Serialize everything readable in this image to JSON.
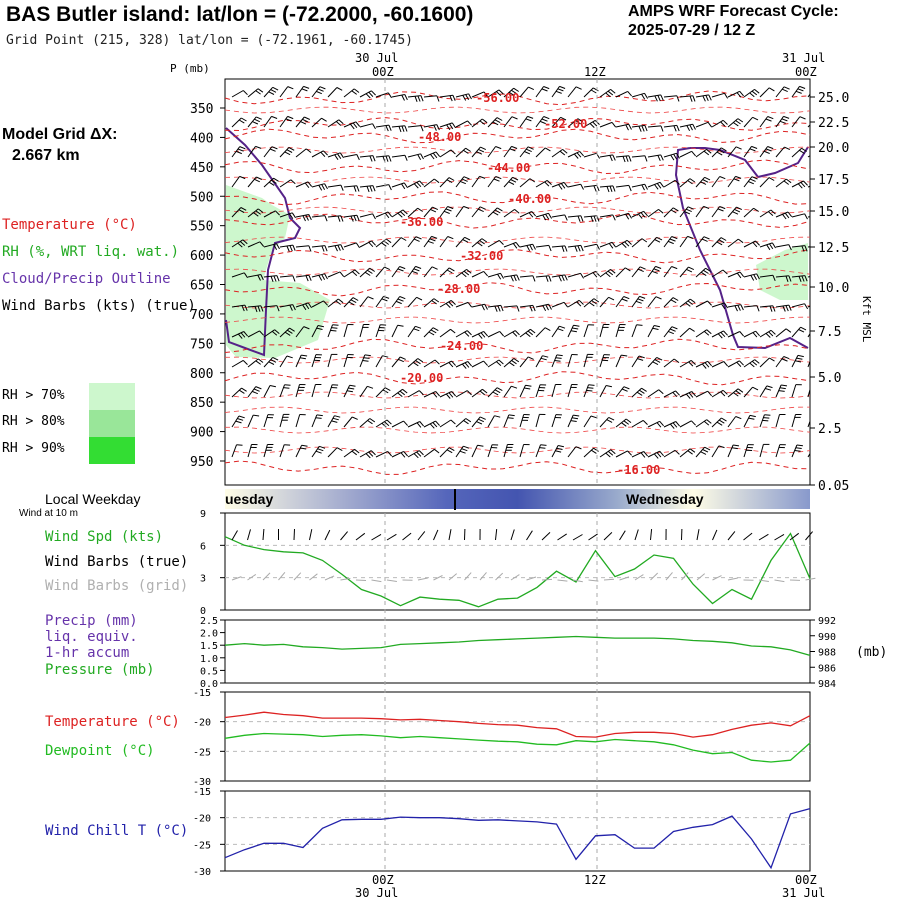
{
  "header": {
    "title": "BAS Butler island:  lat/lon = (-72.2000, -60.1600)",
    "subtitle": "Grid Point (215, 328) lat/lon = (-72.1961, -60.1745)",
    "cycle_line1": "AMPS WRF Forecast Cycle:",
    "cycle_line2": "2025-07-29 / 12  Z",
    "grid_label": "Model Grid ΔX:",
    "grid_value": "2.667 km"
  },
  "legend": {
    "temperature": "Temperature (°C)",
    "rh": "RH (%, WRT liq. wat.)",
    "cloud": "Cloud/Precip Outline",
    "wind": "Wind Barbs (kts) (true)",
    "rh_levels": [
      "RH > 70%",
      "RH > 80%",
      "RH > 90%"
    ],
    "rh_colors": [
      "#cdf7cd",
      "#99e699",
      "#33dd33"
    ]
  },
  "top_axis": {
    "date_label": "30 Jul",
    "date_label_right": "31 Jul",
    "ticks": [
      "00Z",
      "12Z",
      "00Z"
    ],
    "p_label": "P (mb)",
    "right_label": "Kft MSL"
  },
  "bottom_axis": {
    "ticks": [
      "00Z",
      "12Z",
      "00Z"
    ],
    "date_label": "30 Jul",
    "date_label_right": "31 Jul"
  },
  "weekday": {
    "title": "Local Weekday",
    "sub": "Wind at 10 m",
    "left_day": "uesday",
    "right_day": "Wednesday"
  },
  "panels": {
    "wind": {
      "labels": [
        "Wind Spd (kts)",
        "Wind Barbs (true)",
        "Wind Barbs (grid)"
      ],
      "label_colors": [
        "#22aa22",
        "#000000",
        "#b0b0b0"
      ],
      "yticks": [
        "9",
        "6",
        "3",
        "0"
      ]
    },
    "precip": {
      "labels": [
        "Precip (mm)",
        "liq. equiv.",
        "1-hr accum",
        "Pressure (mb)"
      ],
      "label_colors": [
        "#6633aa",
        "#6633aa",
        "#6633aa",
        "#22aa22"
      ],
      "yticks_left": [
        "2.5",
        "2.0",
        "1.5",
        "1.0",
        "0.5",
        "0.0"
      ],
      "yticks_right": [
        "992",
        "990",
        "988",
        "986",
        "984"
      ],
      "unit_right": "(mb)"
    },
    "temp": {
      "labels": [
        "Temperature (°C)",
        "Dewpoint (°C)"
      ],
      "label_colors": [
        "#dd2222",
        "#22bb22"
      ],
      "yticks": [
        "-15",
        "-20",
        "-25",
        "-30"
      ]
    },
    "chill": {
      "labels": [
        "Wind Chill T (°C)"
      ],
      "label_colors": [
        "#2222aa"
      ],
      "yticks": [
        "-15",
        "-20",
        "-25",
        "-30"
      ]
    }
  },
  "chart_data": [
    {
      "type": "heatmap",
      "title": "",
      "ylabel": "P (mb)",
      "y2label": "Kft MSL",
      "pressure_ticks": [
        350,
        400,
        450,
        500,
        550,
        600,
        650,
        700,
        750,
        800,
        850,
        900,
        950
      ],
      "height_ticks_kft": [
        "25.0",
        "22.5",
        "20.0",
        "17.5",
        "15.0",
        "12.5",
        "10.0",
        "7.5",
        "5.0",
        "2.5",
        "0.05"
      ],
      "temperature_contour_labels": [
        "-56.00",
        "-52.00",
        "-48.00",
        "-44.00",
        "-40.00",
        "-36.00",
        "-32.00",
        "-28.00",
        "-24.00",
        "-20.00",
        "-16.00"
      ],
      "colors": {
        "temperature": "#dd2222",
        "cloud": "#552288",
        "rh70": "#cdf7cd"
      }
    },
    {
      "type": "line",
      "title": "Wind Spd (kts)",
      "x_hours": [
        0,
        2,
        4,
        6,
        8,
        10,
        12,
        14,
        16,
        18,
        20,
        22,
        24,
        26,
        28,
        30,
        32,
        34,
        36,
        38,
        40,
        42,
        44,
        46,
        48,
        50,
        52,
        54,
        56,
        58,
        60
      ],
      "series": [
        {
          "name": "Wind Spd (kts)",
          "color": "#22aa22",
          "values": [
            6.8,
            6.0,
            5.6,
            5.4,
            5.3,
            4.6,
            3.3,
            1.9,
            1.3,
            0.4,
            1.2,
            1.0,
            0.9,
            0.3,
            1.0,
            1.1,
            2.1,
            3.6,
            2.6,
            5.5,
            3.1,
            3.8,
            5.1,
            4.8,
            2.4,
            0.6,
            1.9,
            1.0,
            4.6,
            7.1,
            2.9
          ]
        }
      ],
      "ylim": [
        0,
        9
      ]
    },
    {
      "type": "line",
      "title": "Pressure (mb)",
      "x_hours": [
        0,
        2,
        4,
        6,
        8,
        10,
        12,
        14,
        16,
        18,
        20,
        22,
        24,
        26,
        28,
        30,
        32,
        34,
        36,
        38,
        40,
        42,
        44,
        46,
        48,
        50,
        52,
        54,
        56,
        58,
        60
      ],
      "series": [
        {
          "name": "Pressure (mb)",
          "color": "#22aa22",
          "values": [
            988.8,
            989.0,
            988.8,
            988.9,
            988.6,
            988.5,
            988.3,
            988.4,
            988.5,
            988.9,
            989.0,
            989.1,
            989.2,
            989.4,
            989.5,
            989.6,
            989.7,
            989.8,
            989.9,
            989.8,
            989.7,
            989.7,
            989.7,
            989.6,
            989.4,
            989.3,
            989.1,
            988.7,
            988.6,
            988.2,
            987.5
          ]
        }
      ],
      "ylim": [
        984,
        992
      ]
    },
    {
      "type": "line",
      "title": "",
      "x_hours": [
        0,
        2,
        4,
        6,
        8,
        10,
        12,
        14,
        16,
        18,
        20,
        22,
        24,
        26,
        28,
        30,
        32,
        34,
        36,
        38,
        40,
        42,
        44,
        46,
        48,
        50,
        52,
        54,
        56,
        58,
        60
      ],
      "series": [
        {
          "name": "Temperature (°C)",
          "color": "#dd2222",
          "values": [
            -19.3,
            -18.9,
            -18.4,
            -18.8,
            -19.0,
            -19.4,
            -19.4,
            -19.4,
            -19.5,
            -19.7,
            -19.6,
            -19.8,
            -20.0,
            -20.3,
            -20.5,
            -20.6,
            -21.0,
            -21.2,
            -22.5,
            -22.6,
            -22.0,
            -21.8,
            -21.8,
            -22.0,
            -22.6,
            -22.2,
            -21.3,
            -20.6,
            -20.2,
            -20.7,
            -19.0
          ]
        },
        {
          "name": "Dewpoint (°C)",
          "color": "#22bb22",
          "values": [
            -22.8,
            -22.3,
            -22.0,
            -22.1,
            -22.2,
            -22.5,
            -22.3,
            -22.2,
            -22.4,
            -22.7,
            -22.5,
            -22.7,
            -22.9,
            -23.1,
            -23.3,
            -23.4,
            -23.8,
            -23.9,
            -23.2,
            -23.4,
            -23.0,
            -23.2,
            -23.4,
            -23.9,
            -24.8,
            -25.4,
            -25.2,
            -26.5,
            -26.8,
            -26.5,
            -23.6
          ]
        }
      ],
      "ylim": [
        -30,
        -15
      ]
    },
    {
      "type": "line",
      "title": "",
      "x_hours": [
        0,
        2,
        4,
        6,
        8,
        10,
        12,
        14,
        16,
        18,
        20,
        22,
        24,
        26,
        28,
        30,
        32,
        34,
        36,
        38,
        40,
        42,
        44,
        46,
        48,
        50,
        52,
        54,
        56,
        58,
        60
      ],
      "series": [
        {
          "name": "Wind Chill T (°C)",
          "color": "#2222aa",
          "values": [
            -27.5,
            -26.0,
            -24.8,
            -24.8,
            -25.6,
            -22.0,
            -20.4,
            -20.3,
            -20.3,
            -19.9,
            -20.0,
            -20.0,
            -20.2,
            -20.5,
            -20.4,
            -20.6,
            -20.8,
            -21.2,
            -27.8,
            -23.4,
            -23.2,
            -25.7,
            -25.7,
            -22.6,
            -21.8,
            -21.3,
            -19.7,
            -24.0,
            -29.4,
            -19.3,
            -18.3
          ]
        }
      ],
      "ylim": [
        -30,
        -15
      ]
    }
  ]
}
